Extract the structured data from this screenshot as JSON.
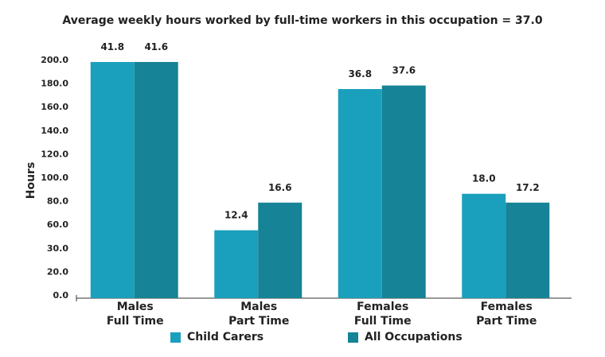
{
  "chart_data": {
    "type": "bar",
    "title": "Average weekly hours worked by full-time workers in this occupation = 37.0",
    "ylabel": "Hours",
    "xlabel": "",
    "categories": [
      [
        "Males",
        "Full Time"
      ],
      [
        "Males",
        "Part Time"
      ],
      [
        "Females",
        "Full Time"
      ],
      [
        "Females",
        "Part Time"
      ]
    ],
    "y_ticks": [
      "0.0",
      "20.0",
      "30.0",
      "60.0",
      "80.0",
      "100.0",
      "120.0",
      "140.0",
      "160.0",
      "180.0",
      "200.0"
    ],
    "series": [
      {
        "name": "Child Carers",
        "color": "#1aa0bc",
        "labels": [
          "41.8",
          "12.4",
          "36.8",
          "18.0"
        ],
        "values": [
          198.0,
          55.0,
          175.0,
          86.0
        ]
      },
      {
        "name": "All Occupations",
        "color": "#168396",
        "labels": [
          "41.6",
          "16.6",
          "37.6",
          "17.2"
        ],
        "values": [
          198.0,
          78.5,
          178.0,
          78.5
        ]
      }
    ],
    "ylim": [
      0,
      200
    ],
    "grid": false,
    "legend_position": "bottom"
  }
}
